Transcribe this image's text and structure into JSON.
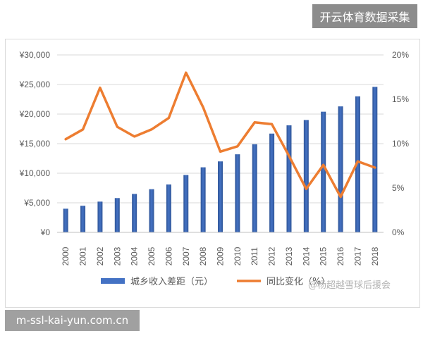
{
  "overlay_top": "开云体育数据采集",
  "overlay_bottom": "m-ssl-kai-yun.com.cn",
  "watermark": "@杨超越雪球后援会",
  "colors": {
    "bar": "#4472c4",
    "bar_dark": "#2f5597",
    "line": "#ed7d31",
    "grid": "#d9d9d9",
    "axis_text": "#595959"
  },
  "chart_data": {
    "type": "bar",
    "categories": [
      "2000",
      "2001",
      "2002",
      "2003",
      "2004",
      "2005",
      "2006",
      "2007",
      "2008",
      "2009",
      "2010",
      "2011",
      "2012",
      "2013",
      "2014",
      "2015",
      "2016",
      "2017",
      "2018"
    ],
    "y_left_ticks": [
      "¥0",
      "¥5,000",
      "¥10,000",
      "¥15,000",
      "¥20,000",
      "¥25,000",
      "¥30,000"
    ],
    "y_right_ticks": [
      "0%",
      "5%",
      "10%",
      "15%",
      "20%"
    ],
    "ylim_left": [
      0,
      30000
    ],
    "ylim_right": [
      0,
      0.2
    ],
    "grid": true,
    "legend_position": "bottom",
    "series": [
      {
        "name": "城乡收入差距（元）",
        "type": "bar",
        "axis": "left",
        "values": [
          4000,
          4500,
          5200,
          5800,
          6500,
          7300,
          8100,
          9700,
          11000,
          12000,
          13200,
          14900,
          16700,
          18100,
          19000,
          20400,
          21300,
          23000,
          24600
        ]
      },
      {
        "name": "同比变化（%）",
        "type": "line",
        "axis": "right",
        "values": [
          0.105,
          0.116,
          0.163,
          0.119,
          0.108,
          0.116,
          0.129,
          0.18,
          0.141,
          0.091,
          0.097,
          0.124,
          0.122,
          0.086,
          0.049,
          0.076,
          0.04,
          0.08,
          0.073
        ]
      }
    ]
  }
}
